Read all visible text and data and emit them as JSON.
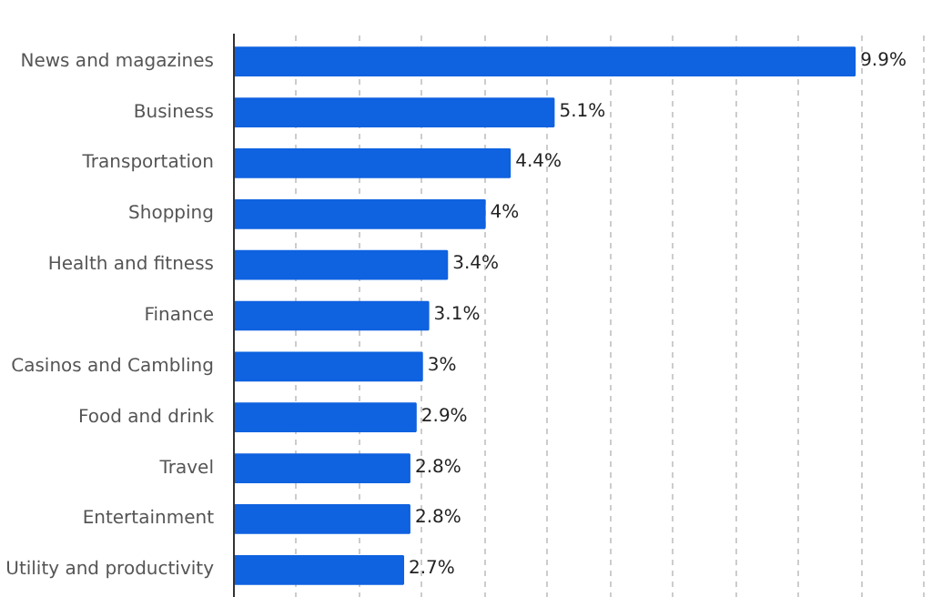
{
  "chart_data": {
    "type": "bar",
    "orientation": "horizontal",
    "categories": [
      "News and magazines",
      "Business",
      "Transportation",
      "Shopping",
      "Health and fitness",
      "Finance",
      "Casinos and Cambling",
      "Food and drink",
      "Travel",
      "Entertainment",
      "Utility and productivity"
    ],
    "values": [
      9.9,
      5.1,
      4.4,
      4,
      3.4,
      3.1,
      3,
      2.9,
      2.8,
      2.8,
      2.7
    ],
    "value_labels": [
      "9.9%",
      "5.1%",
      "4.4%",
      "4%",
      "3.4%",
      "3.1%",
      "3%",
      "2.9%",
      "2.8%",
      "2.8%",
      "2.7%"
    ],
    "color": "#0f62e0",
    "tick_labels": "y"
  }
}
